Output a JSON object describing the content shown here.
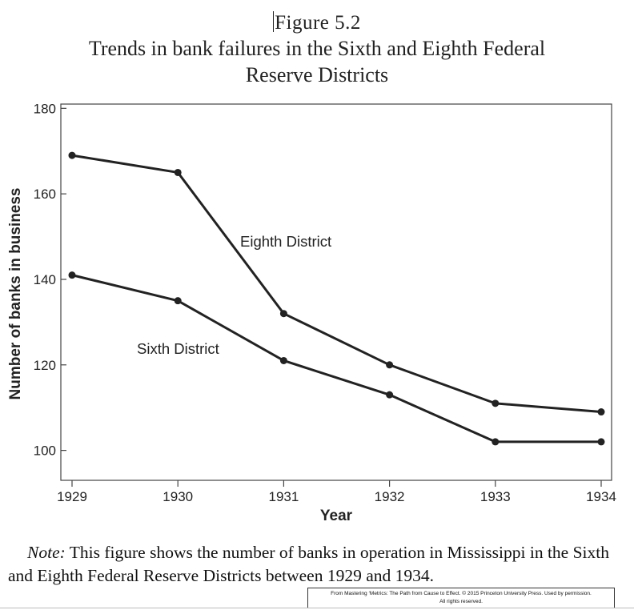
{
  "caption": {
    "figure_label": "Figure 5.2",
    "title_line1": "Trends in bank failures in the Sixth and Eighth Federal",
    "title_line2": "Reserve Districts"
  },
  "chart_data": {
    "type": "line",
    "x": [
      1929,
      1930,
      1931,
      1932,
      1933,
      1934
    ],
    "xlabel": "Year",
    "ylabel": "Number of banks in business",
    "xlim": [
      1929,
      1934
    ],
    "ylim": [
      93,
      181
    ],
    "yticks": [
      100,
      120,
      140,
      160,
      180
    ],
    "xticks": [
      1929,
      1930,
      1931,
      1932,
      1933,
      1934
    ],
    "grid": false,
    "series": [
      {
        "name": "Eighth District",
        "values": [
          169,
          165,
          132,
          120,
          111,
          109
        ]
      },
      {
        "name": "Sixth District",
        "values": [
          141,
          135,
          121,
          113,
          102,
          102
        ]
      }
    ],
    "line_color": "#222222"
  },
  "note": {
    "label": "Note:",
    "text": "This figure shows the number of banks in operation in Mississippi in the Sixth and Eighth Federal Reserve Districts between 1929 and 1934."
  },
  "credit": {
    "line1": "From Mastering ‘Metrics: The Path from Cause to Effect. © 2015 Princeton University Press. Used by permission.",
    "line2": "All rights reserved."
  }
}
